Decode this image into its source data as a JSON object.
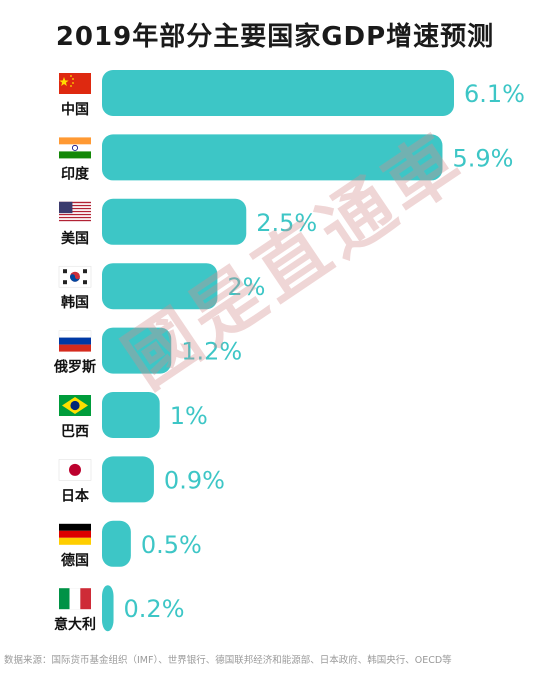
{
  "title": "2019年部分主要国家GDP增速预测",
  "watermark": "國是直通車",
  "source": "数据来源：国际货币基金组织（IMF）、世界银行、德国联邦经济和能源部、日本政府、韩国央行、OECD等",
  "colors": {
    "bar": "#3dc6c6",
    "value_text": "#3dc6c6"
  },
  "chart_data": {
    "type": "bar",
    "orientation": "horizontal",
    "title": "2019年部分主要国家GDP增速预测",
    "categories": [
      "中国",
      "印度",
      "美国",
      "韩国",
      "俄罗斯",
      "巴西",
      "日本",
      "德国",
      "意大利"
    ],
    "values": [
      6.1,
      5.9,
      2.5,
      2,
      1.2,
      1,
      0.9,
      0.5,
      0.2
    ],
    "value_labels": [
      "6.1%",
      "5.9%",
      "2.5%",
      "2%",
      "1.2%",
      "1%",
      "0.9%",
      "0.5%",
      "0.2%"
    ],
    "flags": [
      "china-flag-icon",
      "india-flag-icon",
      "usa-flag-icon",
      "korea-flag-icon",
      "russia-flag-icon",
      "brazil-flag-icon",
      "japan-flag-icon",
      "germany-flag-icon",
      "italy-flag-icon"
    ],
    "xlim": [
      0,
      6.1
    ],
    "grid": false,
    "legend": "none"
  }
}
